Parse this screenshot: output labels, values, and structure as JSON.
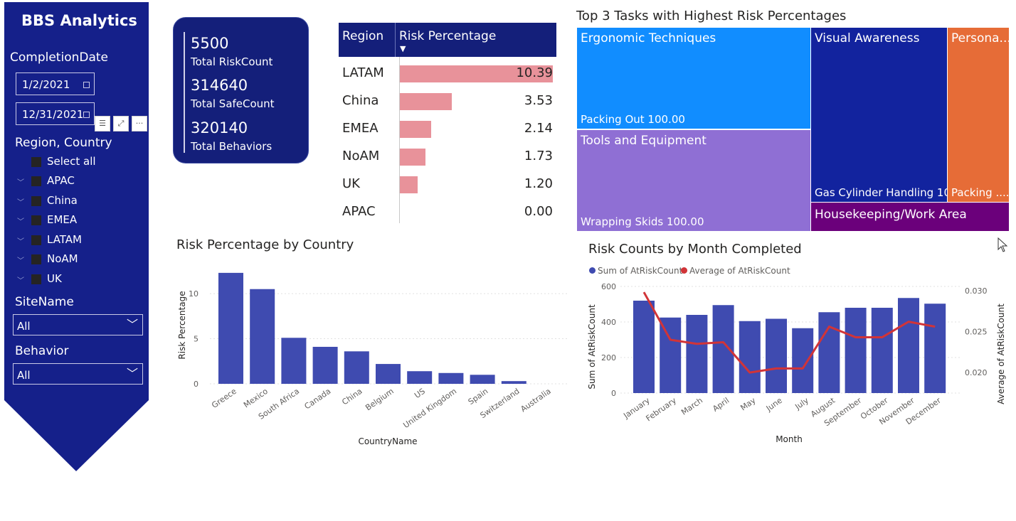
{
  "colors": {
    "navy": "#141f7a",
    "sidebar": "#15208a",
    "bar_pink": "#e8929a",
    "bar_blue": "#3f4bb0",
    "line_red": "#d13438",
    "tm_ergonomic": "#118dff",
    "tm_visual": "#12239e",
    "tm_personal": "#e66c37",
    "tm_tools": "#8f6fd4",
    "tm_housekeeping": "#6b007b"
  },
  "sidebar": {
    "title": "BBS Analytics",
    "completion_label": "CompletionDate",
    "date_start": "1/2/2021",
    "date_end": "12/31/2021",
    "region_label": "Region, Country",
    "select_all": "Select all",
    "regions": [
      "APAC",
      "China",
      "EMEA",
      "LATAM",
      "NoAM",
      "UK"
    ],
    "site_label": "SiteName",
    "site_value": "All",
    "behavior_label": "Behavior",
    "behavior_value": "All",
    "icons": [
      "filter-icon",
      "focus-mode-icon",
      "more-options-icon"
    ]
  },
  "kpi": {
    "risk_value": "5500",
    "risk_label": "Total RiskCount",
    "safe_value": "314640",
    "safe_label": "Total SafeCount",
    "behaviors_value": "320140",
    "behaviors_label": "Total Behaviors"
  },
  "region_table": {
    "col1": "Region",
    "col2": "Risk Percentage",
    "max": 10.39,
    "rows": [
      {
        "region": "LATAM",
        "value": 10.39,
        "label": "10.39"
      },
      {
        "region": "China",
        "value": 3.53,
        "label": "3.53"
      },
      {
        "region": "EMEA",
        "value": 2.14,
        "label": "2.14"
      },
      {
        "region": "NoAM",
        "value": 1.73,
        "label": "1.73"
      },
      {
        "region": "UK",
        "value": 1.2,
        "label": "1.20"
      },
      {
        "region": "APAC",
        "value": 0.0,
        "label": "0.00"
      }
    ]
  },
  "treemap": {
    "title": "Top 3 Tasks with Highest Risk Percentages",
    "ergonomic": {
      "label": "Ergonomic Techniques",
      "sub": "Packing Out 100.00"
    },
    "tools": {
      "label": "Tools and Equipment",
      "sub": "Wrapping Skids 100.00"
    },
    "visual": {
      "label": "Visual Awareness",
      "sub": "Gas Cylinder Handling 10..."
    },
    "housekeeping": {
      "label": "Housekeeping/Work Area"
    },
    "personal": {
      "label": "Persona...",
      "sub": "Packing ......"
    }
  },
  "chart_data": [
    {
      "type": "bar",
      "title": "Risk Percentage by Country",
      "xlabel": "CountryName",
      "ylabel": "Risk Percentage",
      "ylim": [
        0,
        13
      ],
      "yticks": [
        0,
        5,
        10
      ],
      "categories": [
        "Greece",
        "Mexico",
        "South Africa",
        "Canada",
        "China",
        "Belgium",
        "US",
        "United Kingdom",
        "Spain",
        "Switzerland",
        "Australia"
      ],
      "values": [
        12.3,
        10.5,
        5.1,
        4.1,
        3.6,
        2.2,
        1.4,
        1.2,
        1.0,
        0.3,
        0.0
      ],
      "grid": true
    },
    {
      "type": "bar",
      "title": "Risk Counts by Month Completed",
      "xlabel": "Month",
      "ylabel": "Sum of AtRiskCount",
      "y2label": "Average of AtRiskCount",
      "ylim": [
        0,
        600
      ],
      "yticks": [
        0,
        200,
        400,
        600
      ],
      "y2lim": [
        0.0175,
        0.0305
      ],
      "y2ticks": [
        0.02,
        0.025,
        0.03
      ],
      "y2ticklabels": [
        "0.020",
        "0.025",
        "0.030"
      ],
      "legend": "top-left",
      "categories": [
        "January",
        "February",
        "March",
        "April",
        "May",
        "June",
        "July",
        "August",
        "September",
        "October",
        "November",
        "December"
      ],
      "series": [
        {
          "name": "Sum of AtRiskCount",
          "type": "bar",
          "values": [
            520,
            425,
            440,
            495,
            405,
            418,
            365,
            455,
            480,
            480,
            535,
            503
          ]
        },
        {
          "name": "Average of AtRiskCount",
          "type": "line",
          "values": [
            0.0298,
            0.024,
            0.0235,
            0.0237,
            0.02,
            0.0205,
            0.0205,
            0.0256,
            0.0243,
            0.0243,
            0.0262,
            0.0256
          ]
        }
      ]
    }
  ]
}
